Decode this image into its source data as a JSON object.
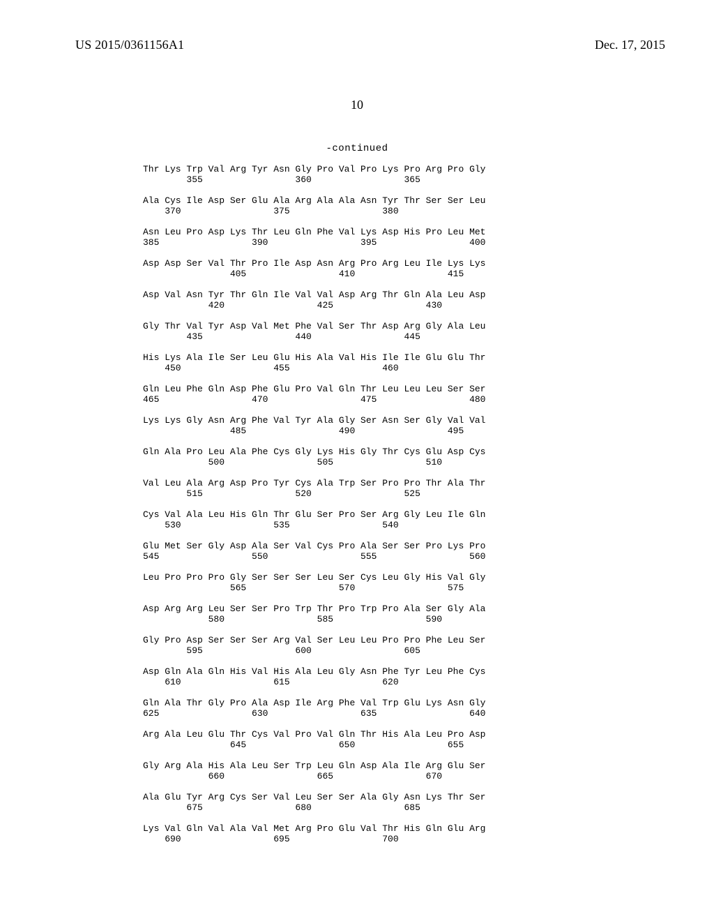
{
  "header": {
    "publication_number": "US 2015/0361156A1",
    "publication_date": "Dec. 17, 2015"
  },
  "page_number": "10",
  "continued_label": "-continued",
  "sequence_text": "Thr Lys Trp Val Arg Tyr Asn Gly Pro Val Pro Lys Pro Arg Pro Gly\n        355                 360                 365\n\nAla Cys Ile Asp Ser Glu Ala Arg Ala Ala Asn Tyr Thr Ser Ser Leu\n    370                 375                 380\n\nAsn Leu Pro Asp Lys Thr Leu Gln Phe Val Lys Asp His Pro Leu Met\n385                 390                 395                 400\n\nAsp Asp Ser Val Thr Pro Ile Asp Asn Arg Pro Arg Leu Ile Lys Lys\n                405                 410                 415\n\nAsp Val Asn Tyr Thr Gln Ile Val Val Asp Arg Thr Gln Ala Leu Asp\n            420                 425                 430\n\nGly Thr Val Tyr Asp Val Met Phe Val Ser Thr Asp Arg Gly Ala Leu\n        435                 440                 445\n\nHis Lys Ala Ile Ser Leu Glu His Ala Val His Ile Ile Glu Glu Thr\n    450                 455                 460\n\nGln Leu Phe Gln Asp Phe Glu Pro Val Gln Thr Leu Leu Leu Ser Ser\n465                 470                 475                 480\n\nLys Lys Gly Asn Arg Phe Val Tyr Ala Gly Ser Asn Ser Gly Val Val\n                485                 490                 495\n\nGln Ala Pro Leu Ala Phe Cys Gly Lys His Gly Thr Cys Glu Asp Cys\n            500                 505                 510\n\nVal Leu Ala Arg Asp Pro Tyr Cys Ala Trp Ser Pro Pro Thr Ala Thr\n        515                 520                 525\n\nCys Val Ala Leu His Gln Thr Glu Ser Pro Ser Arg Gly Leu Ile Gln\n    530                 535                 540\n\nGlu Met Ser Gly Asp Ala Ser Val Cys Pro Ala Ser Ser Pro Lys Pro\n545                 550                 555                 560\n\nLeu Pro Pro Pro Gly Ser Ser Ser Leu Ser Cys Leu Gly His Val Gly\n                565                 570                 575\n\nAsp Arg Arg Leu Ser Ser Pro Trp Thr Pro Trp Pro Ala Ser Gly Ala\n            580                 585                 590\n\nGly Pro Asp Ser Ser Ser Arg Val Ser Leu Leu Pro Pro Phe Leu Ser\n        595                 600                 605\n\nAsp Gln Ala Gln His Val His Ala Leu Gly Asn Phe Tyr Leu Phe Cys\n    610                 615                 620\n\nGln Ala Thr Gly Pro Ala Asp Ile Arg Phe Val Trp Glu Lys Asn Gly\n625                 630                 635                 640\n\nArg Ala Leu Glu Thr Cys Val Pro Val Gln Thr His Ala Leu Pro Asp\n                645                 650                 655\n\nGly Arg Ala His Ala Leu Ser Trp Leu Gln Asp Ala Ile Arg Glu Ser\n            660                 665                 670\n\nAla Glu Tyr Arg Cys Ser Val Leu Ser Ser Ala Gly Asn Lys Thr Ser\n        675                 680                 685\n\nLys Val Gln Val Ala Val Met Arg Pro Glu Val Thr His Gln Glu Arg\n    690                 695                 700"
}
